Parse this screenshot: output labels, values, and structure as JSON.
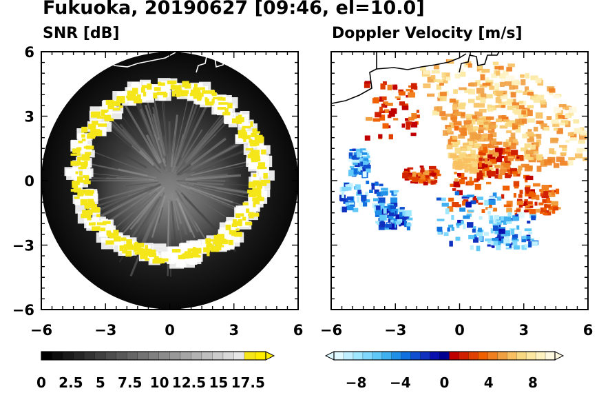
{
  "figure_title": "Fukuoka, 20190627 [09:46, el=10.0]",
  "chart_data": [
    {
      "type": "heatmap",
      "title": "SNR [dB]",
      "xlabel": "",
      "ylabel": "",
      "xlim": [
        -6,
        6
      ],
      "ylim": [
        -6,
        6
      ],
      "xticks": [
        "−6",
        "−3",
        "0",
        "3",
        "6"
      ],
      "yticks": [
        "6",
        "3",
        "0",
        "−3",
        "−6"
      ],
      "xtick_values": [
        -6,
        -3,
        0,
        3,
        6
      ],
      "ytick_values": [
        6,
        3,
        0,
        -3,
        -6
      ],
      "colorbar": {
        "range": [
          0,
          19
        ],
        "ticks": [
          "0",
          "2.5",
          "5",
          "7.5",
          "10",
          "12.5",
          "15",
          "17.5"
        ],
        "tick_values": [
          0,
          2.5,
          5,
          7.5,
          10,
          12.5,
          15,
          17.5
        ],
        "extend": "max",
        "colors": [
          "#000000",
          "#0d0d0d",
          "#1a1a1a",
          "#262626",
          "#333333",
          "#404040",
          "#4d4d4d",
          "#595959",
          "#666666",
          "#737373",
          "#808080",
          "#8c8c8c",
          "#999999",
          "#a6a6a6",
          "#b3b3b3",
          "#bfbfbf",
          "#cccccc",
          "#d9d9d9",
          "#e6e6e6",
          "#f5e61a",
          "#ffee00"
        ]
      },
      "ring_radius": 4.2,
      "domain_radius": 6
    },
    {
      "type": "heatmap",
      "title": "Doppler Velocity [m/s]",
      "xlabel": "",
      "ylabel": "",
      "xlim": [
        -6,
        6
      ],
      "ylim": [
        -6,
        6
      ],
      "xticks": [
        "−6",
        "−3",
        "0",
        "3",
        "6"
      ],
      "xtick_values": [
        -6,
        -3,
        0,
        3,
        6
      ],
      "colorbar": {
        "range": [
          -10,
          10
        ],
        "ticks": [
          "−8",
          "−4",
          "0",
          "4",
          "8"
        ],
        "tick_values": [
          -8,
          -4,
          0,
          4,
          8
        ],
        "extend": "both",
        "colors": [
          "#e0f8ff",
          "#c0f0ff",
          "#a0e8ff",
          "#80d8ff",
          "#60c8f8",
          "#40b0f0",
          "#2090e8",
          "#1070e0",
          "#1050d0",
          "#1030c0",
          "#0a10b0",
          "#000090",
          "#c00000",
          "#d02000",
          "#e04000",
          "#f06000",
          "#f08020",
          "#f0a040",
          "#f8c060",
          "#f8d880",
          "#fce8a0",
          "#fef2c0",
          "#fff8e0"
        ]
      }
    }
  ],
  "colors": {
    "coast": "#000000",
    "ring": "#f5e61a",
    "ring_glow": "#ffffff"
  }
}
